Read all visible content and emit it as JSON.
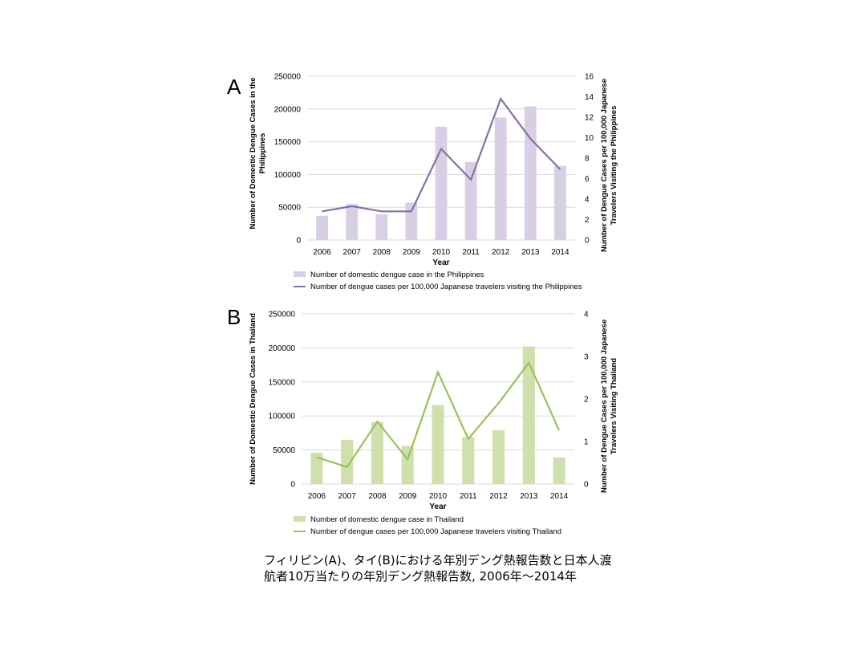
{
  "caption": {
    "line1": "フィリピン(A)、タイ(B)における年別デング熱報告数と日本人渡",
    "line2": "航者10万当たりの年別デング熱報告数, 2006年～2014年"
  },
  "colors": {
    "philippines_bar": "#d9cfe5",
    "philippines_line": "#8570a8",
    "thailand_bar": "#cfe0ad",
    "thailand_line": "#99c259",
    "grid": "#d9d9d9",
    "text": "#000000"
  },
  "chart_data": [
    {
      "panel": "A",
      "type": "bar",
      "xlabel": "Year",
      "ylabel": "Number of Domestic Dengue Cases in the Philippines",
      "y2label": "Number of Dengue Cases per 100,000 Japanese Travelers Visiting the Philippines",
      "categories": [
        "2006",
        "2007",
        "2008",
        "2009",
        "2010",
        "2011",
        "2012",
        "2013",
        "2014"
      ],
      "ylim": [
        0,
        250000
      ],
      "yticks": [
        "0",
        "50000",
        "100000",
        "150000",
        "200000",
        "250000"
      ],
      "y2lim": [
        0,
        16
      ],
      "y2ticks": [
        "0",
        "2",
        "4",
        "6",
        "8",
        "10",
        "12",
        "14",
        "16"
      ],
      "grid": true,
      "legend_position": "bottom",
      "series": [
        {
          "name": "Number of domestic dengue case in the Philippines",
          "type": "bar",
          "axis": "left",
          "values": [
            37000,
            55000,
            39000,
            57000,
            173000,
            119000,
            187000,
            204000,
            113000
          ]
        },
        {
          "name": "Number of dengue cases per 100,000 Japanese travelers visiting the Philippines",
          "type": "line",
          "axis": "right",
          "values": [
            2.8,
            3.3,
            2.8,
            2.8,
            8.9,
            5.9,
            13.8,
            9.9,
            6.9
          ]
        }
      ]
    },
    {
      "panel": "B",
      "type": "bar",
      "xlabel": "Year",
      "ylabel": "Number of Domestic Dengue Cases in Thailand",
      "y2label": "Number of Dengue Cases per 100,000 Japanese Travelers Visiting Thailand",
      "categories": [
        "2006",
        "2007",
        "2008",
        "2009",
        "2010",
        "2011",
        "2012",
        "2013",
        "2014"
      ],
      "ylim": [
        0,
        250000
      ],
      "yticks": [
        "0",
        "50000",
        "100000",
        "150000",
        "200000",
        "250000"
      ],
      "y2lim": [
        0,
        4
      ],
      "y2ticks": [
        "0",
        "1",
        "2",
        "3",
        "4"
      ],
      "grid": true,
      "legend_position": "bottom",
      "series": [
        {
          "name": "Number of domestic dengue case in Thailand",
          "type": "bar",
          "axis": "left",
          "values": [
            46000,
            65000,
            91000,
            56000,
            116000,
            69000,
            79000,
            202000,
            39000
          ]
        },
        {
          "name": "Number of dengue cases per 100,000 Japanese travelers visiting Thailand",
          "type": "line",
          "axis": "right",
          "values": [
            0.63,
            0.4,
            1.47,
            0.58,
            2.63,
            1.06,
            1.9,
            2.85,
            1.26
          ]
        }
      ]
    }
  ]
}
